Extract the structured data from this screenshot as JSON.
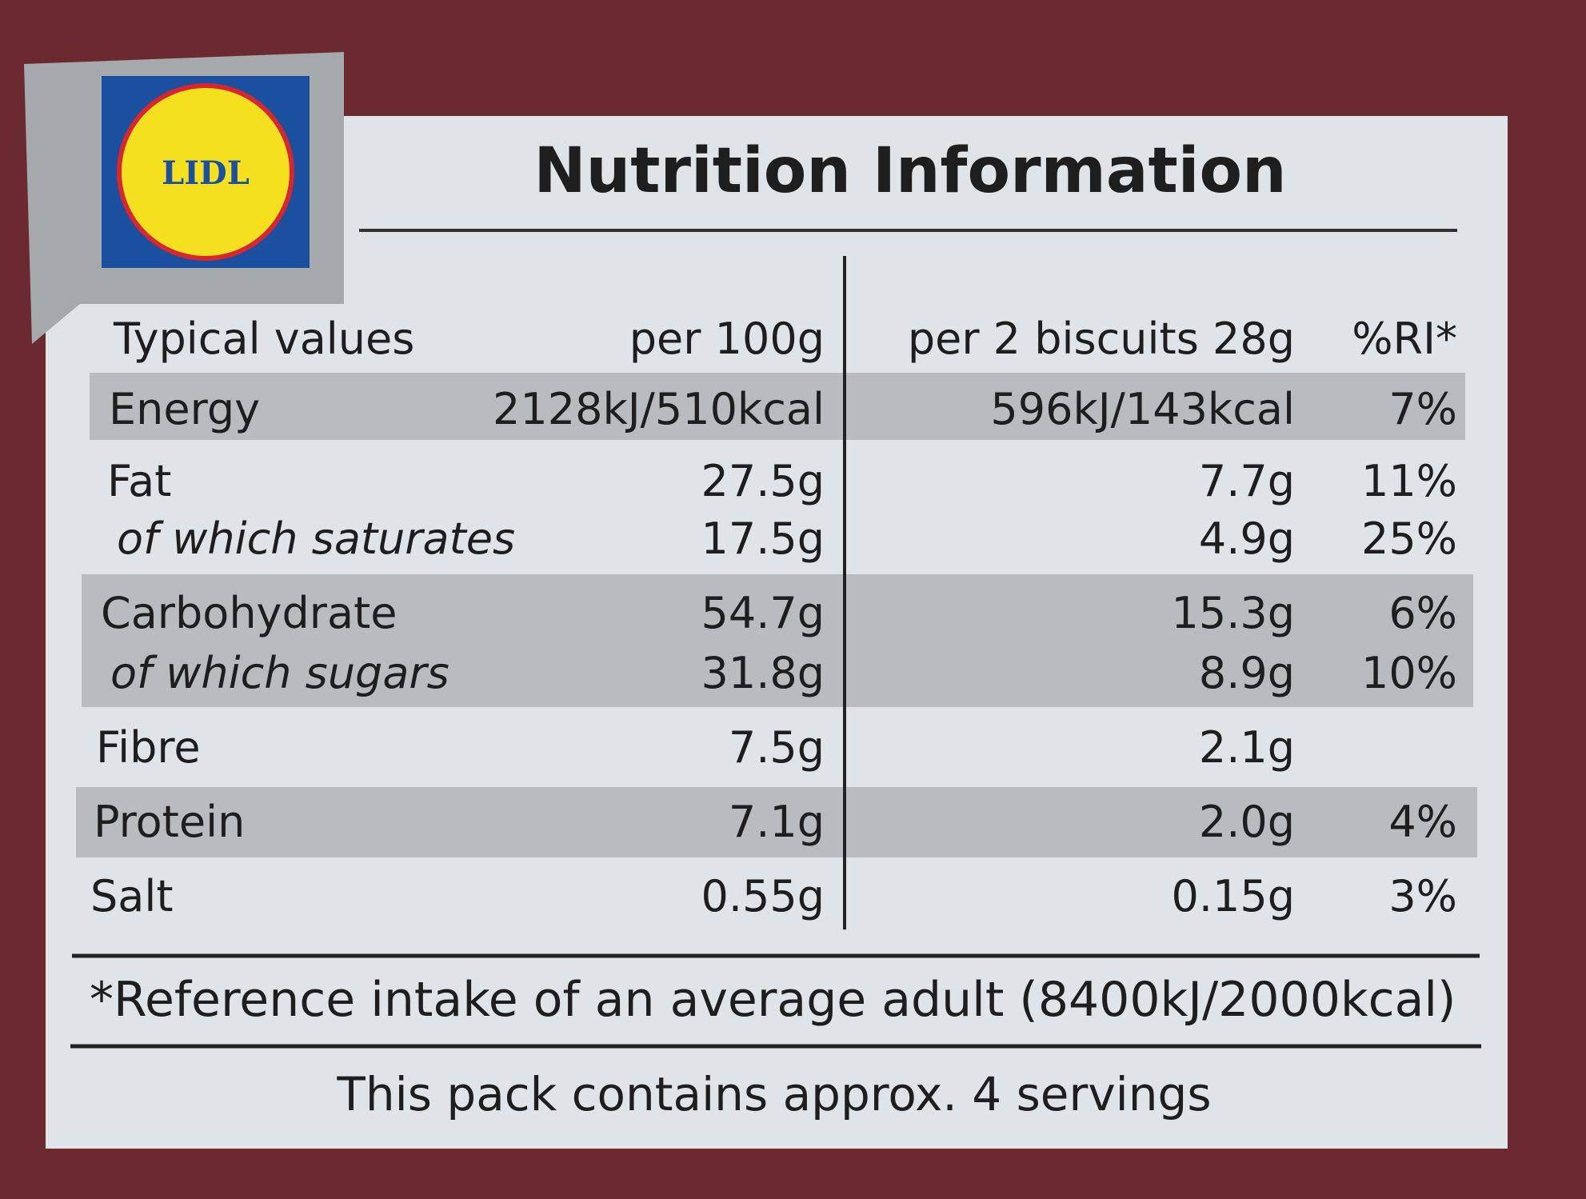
{
  "header": {
    "logo": "LIDL",
    "title": "Nutrition Information"
  },
  "table": {
    "columns": [
      "Typical values",
      "per 100g",
      "per 2 biscuits 28g",
      "%RI*"
    ],
    "rows": [
      [
        "Energy",
        "2128kJ/510kcal",
        "596kJ/143kcal",
        "7%"
      ],
      [
        "Fat",
        "27.5g",
        "7.7g",
        "11%"
      ],
      [
        "of which saturates",
        "17.5g",
        "4.9g",
        "25%"
      ],
      [
        "Carbohydrate",
        "54.7g",
        "15.3g",
        "6%"
      ],
      [
        "of which sugars",
        "31.8g",
        "8.9g",
        "10%"
      ],
      [
        "Fibre",
        "7.5g",
        "2.1g",
        null
      ],
      [
        "Protein",
        "7.1g",
        "2.0g",
        "4%"
      ],
      [
        "Salt",
        "0.55g",
        "0.15g",
        "3%"
      ]
    ]
  },
  "footnote": "*Reference intake of an average adult (8400kJ/2000kcal)",
  "servings": "This pack contains approx. 4 servings"
}
